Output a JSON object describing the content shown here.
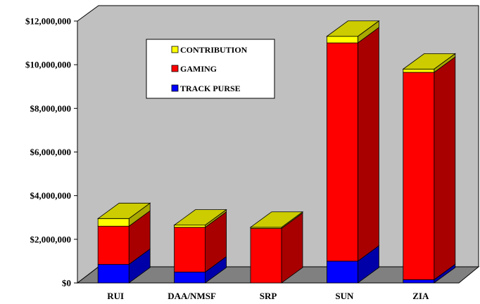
{
  "chart_data": {
    "type": "bar",
    "stacked": true,
    "three_d": true,
    "categories": [
      "RUI",
      "DAA/NMSF",
      "SRP",
      "SUN",
      "ZIA"
    ],
    "series": [
      {
        "name": "TRACK PURSE",
        "color": "#0000ff",
        "values": [
          850000,
          500000,
          0,
          1000000,
          150000
        ]
      },
      {
        "name": "GAMING",
        "color": "#ff0000",
        "values": [
          1750000,
          2050000,
          2500000,
          10000000,
          9500000
        ]
      },
      {
        "name": "CONTRIBUTION",
        "color": "#ffff00",
        "values": [
          350000,
          100000,
          50000,
          300000,
          150000
        ]
      }
    ],
    "y_ticks": [
      "$0",
      "$2,000,000",
      "$4,000,000",
      "$6,000,000",
      "$8,000,000",
      "$10,000,000",
      "$12,000,000"
    ],
    "ylim": [
      0,
      12000000
    ],
    "legend_placement": "upper-left inside plot",
    "colors": {
      "wall": "#c0c0c0",
      "floor": "#808080",
      "top_face": "#cccc00"
    }
  }
}
